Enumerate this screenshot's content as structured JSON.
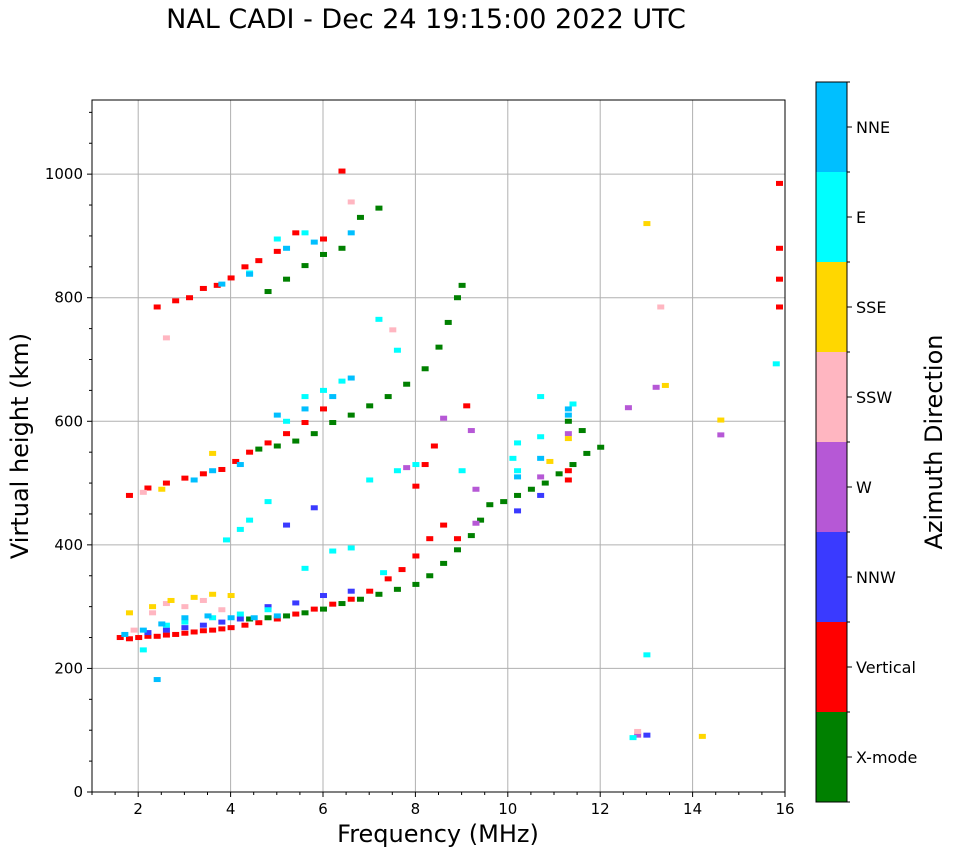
{
  "chart_data": {
    "type": "scatter",
    "title": "NAL CADI - Dec 24 19:15:00 2022 UTC",
    "xlabel": "Frequency (MHz)",
    "ylabel": "Virtual height (km)",
    "xlim": [
      1,
      16
    ],
    "ylim": [
      0,
      1120
    ],
    "xticks": [
      2,
      4,
      6,
      8,
      10,
      12,
      14,
      16
    ],
    "yticks": [
      0,
      200,
      400,
      600,
      800,
      1000
    ],
    "grid": true,
    "colorbar": {
      "label": "Azimuth Direction",
      "categories": [
        {
          "name": "X-mode",
          "color": "#008000"
        },
        {
          "name": "Vertical",
          "color": "#ff0000"
        },
        {
          "name": "NNW",
          "color": "#3a3aff"
        },
        {
          "name": "W",
          "color": "#b658d6"
        },
        {
          "name": "SSW",
          "color": "#ffb6c1"
        },
        {
          "name": "SSE",
          "color": "#ffd700"
        },
        {
          "name": "E",
          "color": "#00ffff"
        },
        {
          "name": "NNE",
          "color": "#00bfff"
        }
      ]
    },
    "series": [
      {
        "name": "Vertical",
        "points": [
          [
            1.6,
            250
          ],
          [
            1.8,
            248
          ],
          [
            2,
            250
          ],
          [
            2.2,
            252
          ],
          [
            2.4,
            252
          ],
          [
            2.6,
            254
          ],
          [
            2.8,
            255
          ],
          [
            3,
            257
          ],
          [
            3.2,
            259
          ],
          [
            3.4,
            261
          ],
          [
            3.6,
            262
          ],
          [
            3.8,
            264
          ],
          [
            4,
            266
          ],
          [
            4.3,
            270
          ],
          [
            4.6,
            274
          ],
          [
            5,
            280
          ],
          [
            5.4,
            288
          ],
          [
            5.8,
            296
          ],
          [
            6.2,
            304
          ],
          [
            6.6,
            312
          ],
          [
            7,
            325
          ],
          [
            7.4,
            345
          ],
          [
            7.7,
            360
          ],
          [
            8,
            382
          ],
          [
            8.3,
            410
          ],
          [
            8.6,
            432
          ],
          [
            8.9,
            410
          ],
          [
            9.1,
            625
          ],
          [
            8.4,
            560
          ],
          [
            8.2,
            530
          ],
          [
            8,
            495
          ],
          [
            1.8,
            480
          ],
          [
            2.2,
            492
          ],
          [
            2.6,
            500
          ],
          [
            3,
            508
          ],
          [
            3.4,
            515
          ],
          [
            3.8,
            522
          ],
          [
            4.1,
            535
          ],
          [
            4.4,
            550
          ],
          [
            4.8,
            565
          ],
          [
            5.2,
            580
          ],
          [
            5.6,
            598
          ],
          [
            6,
            620
          ],
          [
            2.4,
            785
          ],
          [
            2.8,
            795
          ],
          [
            3.1,
            800
          ],
          [
            3.4,
            815
          ],
          [
            3.7,
            820
          ],
          [
            4,
            832
          ],
          [
            4.3,
            850
          ],
          [
            4.6,
            860
          ],
          [
            5,
            875
          ],
          [
            5.4,
            905
          ],
          [
            6,
            895
          ],
          [
            6.4,
            1005
          ],
          [
            11.3,
            505
          ],
          [
            11.3,
            520
          ],
          [
            16,
            985
          ],
          [
            16,
            880
          ],
          [
            16,
            830
          ],
          [
            16,
            785
          ]
        ]
      },
      {
        "name": "X-mode",
        "points": [
          [
            4.4,
            280
          ],
          [
            4.8,
            282
          ],
          [
            5.2,
            285
          ],
          [
            5.6,
            290
          ],
          [
            6,
            296
          ],
          [
            6.4,
            305
          ],
          [
            6.8,
            312
          ],
          [
            7.2,
            320
          ],
          [
            7.6,
            328
          ],
          [
            8,
            336
          ],
          [
            8.3,
            350
          ],
          [
            8.6,
            370
          ],
          [
            8.9,
            392
          ],
          [
            9.2,
            415
          ],
          [
            9.4,
            440
          ],
          [
            9.6,
            465
          ],
          [
            9.9,
            470
          ],
          [
            10.2,
            480
          ],
          [
            10.5,
            490
          ],
          [
            10.8,
            500
          ],
          [
            11.1,
            515
          ],
          [
            11.4,
            530
          ],
          [
            11.7,
            548
          ],
          [
            12,
            558
          ],
          [
            11.6,
            585
          ],
          [
            11.3,
            600
          ],
          [
            4.6,
            555
          ],
          [
            5,
            560
          ],
          [
            5.4,
            568
          ],
          [
            5.8,
            580
          ],
          [
            6.2,
            598
          ],
          [
            6.6,
            610
          ],
          [
            7,
            625
          ],
          [
            7.4,
            640
          ],
          [
            7.8,
            660
          ],
          [
            8.2,
            685
          ],
          [
            8.5,
            720
          ],
          [
            8.7,
            760
          ],
          [
            8.9,
            800
          ],
          [
            9,
            820
          ],
          [
            4.8,
            810
          ],
          [
            5.2,
            830
          ],
          [
            5.6,
            852
          ],
          [
            6,
            870
          ],
          [
            6.4,
            880
          ],
          [
            6.8,
            930
          ],
          [
            7.2,
            945
          ]
        ]
      },
      {
        "name": "NNW",
        "points": [
          [
            2.2,
            258
          ],
          [
            2.6,
            262
          ],
          [
            3,
            266
          ],
          [
            3.4,
            270
          ],
          [
            3.8,
            275
          ],
          [
            4.2,
            280
          ],
          [
            4.8,
            300
          ],
          [
            5.4,
            306
          ],
          [
            6,
            318
          ],
          [
            6.6,
            325
          ],
          [
            10.2,
            455
          ],
          [
            10.7,
            480
          ],
          [
            13,
            92
          ],
          [
            5.2,
            432
          ],
          [
            5.8,
            460
          ]
        ]
      },
      {
        "name": "W",
        "points": [
          [
            7.8,
            525
          ],
          [
            8.6,
            605
          ],
          [
            9.2,
            585
          ],
          [
            10.7,
            510
          ],
          [
            11.3,
            580
          ],
          [
            12.6,
            622
          ],
          [
            13.2,
            655
          ],
          [
            14.6,
            578
          ],
          [
            12.8,
            92
          ],
          [
            9.3,
            490
          ],
          [
            9.3,
            435
          ]
        ]
      },
      {
        "name": "SSW",
        "points": [
          [
            1.9,
            262
          ],
          [
            2.3,
            290
          ],
          [
            2.6,
            305
          ],
          [
            3,
            300
          ],
          [
            3.4,
            310
          ],
          [
            3.8,
            295
          ],
          [
            2.1,
            485
          ],
          [
            2.6,
            735
          ],
          [
            7.5,
            748
          ],
          [
            13.3,
            785
          ],
          [
            12.8,
            98
          ],
          [
            6.6,
            955
          ]
        ]
      },
      {
        "name": "SSE",
        "points": [
          [
            1.8,
            290
          ],
          [
            2.3,
            300
          ],
          [
            2.7,
            310
          ],
          [
            3.2,
            315
          ],
          [
            3.6,
            320
          ],
          [
            4,
            318
          ],
          [
            2.5,
            490
          ],
          [
            3.6,
            548
          ],
          [
            11.3,
            572
          ],
          [
            13,
            920
          ],
          [
            13.4,
            658
          ],
          [
            14.6,
            602
          ],
          [
            14.2,
            90
          ],
          [
            10.9,
            535
          ]
        ]
      },
      {
        "name": "E",
        "points": [
          [
            2.1,
            230
          ],
          [
            2.6,
            270
          ],
          [
            3,
            275
          ],
          [
            3.6,
            282
          ],
          [
            4.2,
            288
          ],
          [
            4.8,
            295
          ],
          [
            3.9,
            408
          ],
          [
            4.2,
            425
          ],
          [
            4.4,
            440
          ],
          [
            4.8,
            470
          ],
          [
            5.6,
            362
          ],
          [
            6.2,
            390
          ],
          [
            6.6,
            395
          ],
          [
            7.3,
            355
          ],
          [
            7,
            505
          ],
          [
            7.6,
            520
          ],
          [
            8,
            530
          ],
          [
            9,
            520
          ],
          [
            10.2,
            520
          ],
          [
            10.2,
            565
          ],
          [
            10.7,
            575
          ],
          [
            10.7,
            640
          ],
          [
            11.4,
            628
          ],
          [
            10.1,
            540
          ],
          [
            13,
            222
          ],
          [
            12.7,
            88
          ],
          [
            15.8,
            693
          ],
          [
            5.2,
            600
          ],
          [
            5.6,
            640
          ],
          [
            6,
            650
          ],
          [
            6.4,
            665
          ],
          [
            7.2,
            765
          ],
          [
            4.4,
            840
          ],
          [
            5,
            895
          ],
          [
            5.6,
            905
          ],
          [
            7.6,
            715
          ]
        ]
      },
      {
        "name": "NNE",
        "points": [
          [
            1.7,
            255
          ],
          [
            2.1,
            262
          ],
          [
            2.5,
            272
          ],
          [
            3,
            282
          ],
          [
            3.5,
            285
          ],
          [
            4,
            282
          ],
          [
            4.5,
            282
          ],
          [
            5,
            285
          ],
          [
            2.4,
            182
          ],
          [
            3.2,
            505
          ],
          [
            3.6,
            520
          ],
          [
            4.2,
            530
          ],
          [
            5,
            610
          ],
          [
            5.6,
            620
          ],
          [
            6.2,
            640
          ],
          [
            6.6,
            670
          ],
          [
            11.3,
            610
          ],
          [
            11.3,
            620
          ],
          [
            10.2,
            510
          ],
          [
            10.7,
            540
          ],
          [
            3.8,
            822
          ],
          [
            4.4,
            838
          ],
          [
            5.2,
            880
          ],
          [
            5.8,
            890
          ],
          [
            6.6,
            905
          ]
        ]
      }
    ]
  }
}
